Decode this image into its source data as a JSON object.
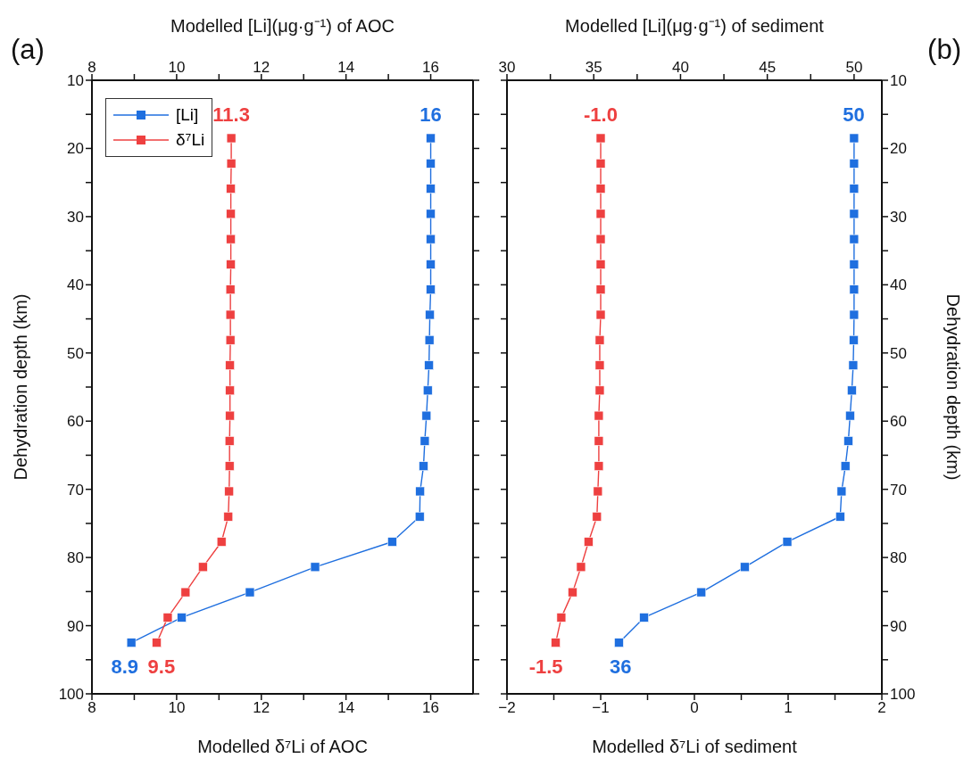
{
  "chart_data": [
    {
      "type": "line",
      "title": "(a)",
      "xlabel": "Modelled δ⁷Li of AOC",
      "x2label": "Modelled [Li](μg·g⁻¹) of AOC",
      "ylabel": "Dehydration depth (km)",
      "series": [
        {
          "name": "[Li]",
          "color": "#1f6fdf",
          "axis": "x2",
          "x": [
            16,
            16,
            16,
            16,
            16,
            16,
            16,
            15.98,
            15.97,
            15.96,
            15.93,
            15.9,
            15.86,
            15.83,
            15.75,
            15.74,
            15.09,
            13.27,
            11.73,
            10.12,
            8.93
          ],
          "values": [
            18.5,
            22.2,
            25.9,
            29.6,
            33.3,
            37,
            40.7,
            44.4,
            48.1,
            51.8,
            55.5,
            59.2,
            62.9,
            66.6,
            70.3,
            74,
            77.7,
            81.4,
            85.1,
            88.8,
            92.5
          ]
        },
        {
          "name": "δ⁷Li",
          "color": "#ee4040",
          "x": [
            11.29,
            11.29,
            11.28,
            11.28,
            11.28,
            11.28,
            11.27,
            11.27,
            11.27,
            11.26,
            11.26,
            11.26,
            11.25,
            11.25,
            11.24,
            11.22,
            11.06,
            10.62,
            10.21,
            9.79,
            9.53
          ],
          "values": [
            18.5,
            22.2,
            25.9,
            29.6,
            33.3,
            37,
            40.7,
            44.4,
            48.1,
            51.8,
            55.5,
            59.2,
            62.9,
            66.6,
            70.3,
            74,
            77.7,
            81.4,
            85.1,
            88.8,
            92.5
          ]
        }
      ],
      "xlim": [
        8,
        17
      ],
      "xticks": [
        8,
        {
          "value": 9,
          "label": null
        },
        10,
        {
          "value": 11,
          "label": null
        },
        12,
        {
          "value": 13,
          "label": null
        },
        14,
        {
          "value": 15,
          "label": null
        },
        16
      ],
      "x2lim": [
        8,
        17
      ],
      "x2ticks": [
        8,
        {
          "value": 9,
          "label": null
        },
        10,
        {
          "value": 11,
          "label": null
        },
        12,
        {
          "value": 13,
          "label": null
        },
        14,
        {
          "value": 15,
          "label": null
        },
        16
      ],
      "ylim": [
        100,
        10
      ],
      "yticks": [
        10,
        {
          "value": 15,
          "label": null
        },
        20,
        {
          "value": 25,
          "label": null
        },
        30,
        {
          "value": 35,
          "label": null
        },
        40,
        {
          "value": 45,
          "label": null
        },
        50,
        {
          "value": 55,
          "label": null
        },
        60,
        {
          "value": 65,
          "label": null
        },
        70,
        {
          "value": 75,
          "label": null
        },
        80,
        {
          "value": 85,
          "label": null
        },
        90,
        {
          "value": 95,
          "label": null
        },
        100
      ],
      "annotations": [
        {
          "text": "16",
          "x": 16,
          "y": 18.5
        },
        {
          "text": "11.3",
          "x": 11.29,
          "y": 18.5
        },
        {
          "text": "8.9",
          "x": 8.93,
          "y": 92.5
        },
        {
          "text": "9.5",
          "x": 9.53,
          "y": 92.5
        }
      ],
      "marker": "square",
      "grid": false,
      "legend": "top left"
    },
    {
      "type": "line",
      "title": "(b)",
      "xlabel": "Modelled δ⁷Li of sediment",
      "x2label": "Modelled [Li](μg·g⁻¹) of sediment",
      "ylabel": "Dehydration depth (km)",
      "series": [
        {
          "color": "#1f6fdf",
          "axis": "x2",
          "x": [
            50,
            50,
            50,
            50,
            50,
            50,
            50,
            50,
            49.98,
            49.95,
            49.87,
            49.77,
            49.67,
            49.5,
            49.28,
            49.2,
            46.15,
            43.7,
            41.2,
            37.9,
            36.45
          ],
          "values": [
            18.5,
            22.2,
            25.9,
            29.6,
            33.3,
            37,
            40.7,
            44.4,
            48.1,
            51.8,
            55.5,
            59.2,
            62.9,
            66.6,
            70.3,
            74,
            77.7,
            81.4,
            85.1,
            88.8,
            92.5
          ]
        },
        {
          "color": "#ee4040",
          "x": [
            -1,
            -1,
            -1,
            -1,
            -1,
            -1,
            -1,
            -1,
            -1.01,
            -1.01,
            -1.01,
            -1.02,
            -1.02,
            -1.02,
            -1.03,
            -1.04,
            -1.13,
            -1.21,
            -1.3,
            -1.42,
            -1.48
          ],
          "values": [
            18.5,
            22.2,
            25.9,
            29.6,
            33.3,
            37,
            40.7,
            44.4,
            48.1,
            51.8,
            55.5,
            59.2,
            62.9,
            66.6,
            70.3,
            74,
            77.7,
            81.4,
            85.1,
            88.8,
            92.5
          ]
        }
      ],
      "xlim": [
        -2,
        2
      ],
      "xticks": [
        -2,
        {
          "value": -1.5,
          "label": null
        },
        -1,
        {
          "value": -0.5,
          "label": null
        },
        0,
        {
          "value": 0.5,
          "label": null
        },
        1,
        {
          "value": 1.5,
          "label": null
        },
        2
      ],
      "x2lim": [
        30,
        51.6
      ],
      "x2ticks": [
        30,
        {
          "value": 32.5,
          "label": null
        },
        35,
        {
          "value": 37.5,
          "label": null
        },
        40,
        {
          "value": 42.5,
          "label": null
        },
        45,
        {
          "value": 47.5,
          "label": null
        },
        50
      ],
      "ylim": [
        100,
        10
      ],
      "yticks": [
        10,
        {
          "value": 15,
          "label": null
        },
        20,
        {
          "value": 25,
          "label": null
        },
        30,
        {
          "value": 35,
          "label": null
        },
        40,
        {
          "value": 45,
          "label": null
        },
        50,
        {
          "value": 55,
          "label": null
        },
        60,
        {
          "value": 65,
          "label": null
        },
        70,
        {
          "value": 75,
          "label": null
        },
        80,
        {
          "value": 85,
          "label": null
        },
        90,
        {
          "value": 95,
          "label": null
        },
        100
      ],
      "annotations": [
        {
          "text": "50",
          "x": 1.7,
          "y": 18.5
        },
        {
          "text": "-1.0",
          "x": -1,
          "y": 18.5
        },
        {
          "text": "36",
          "x": -0.81,
          "y": 92.5
        },
        {
          "text": "-1.5",
          "x": -1.48,
          "y": 92.5
        }
      ],
      "marker": "square",
      "grid": false,
      "legend": false
    }
  ]
}
